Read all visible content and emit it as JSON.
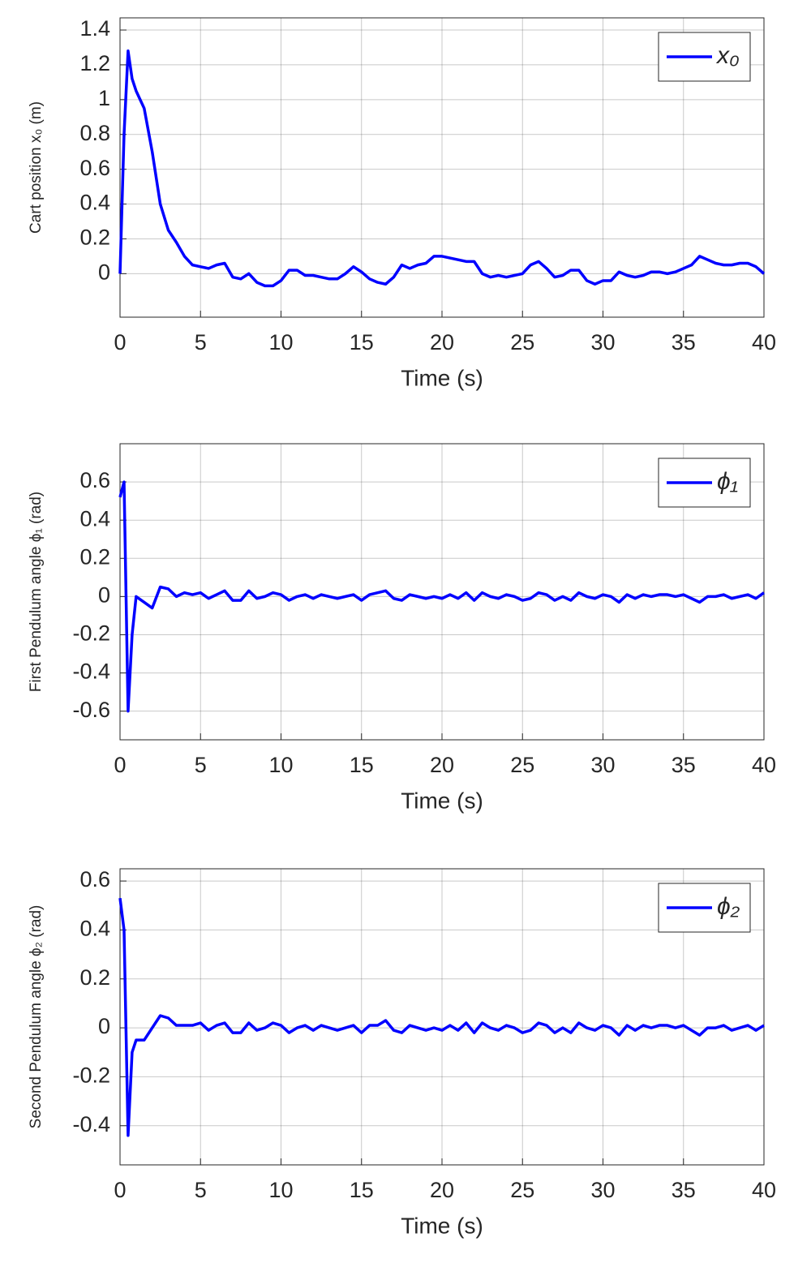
{
  "chart_data": [
    {
      "type": "line",
      "ylabel": "Cart position x₀ (m)",
      "xlabel": "Time (s)",
      "x": [
        0,
        0.25,
        0.5,
        0.75,
        1,
        1.5,
        2,
        2.5,
        3,
        3.5,
        4,
        4.5,
        5,
        5.5,
        6,
        6.5,
        7,
        7.5,
        8,
        8.5,
        9,
        9.5,
        10,
        10.5,
        11,
        11.5,
        12,
        12.5,
        13,
        13.5,
        14,
        14.5,
        15,
        15.5,
        16,
        16.5,
        17,
        17.5,
        18,
        18.5,
        19,
        19.5,
        20,
        20.5,
        21,
        21.5,
        22,
        22.5,
        23,
        23.5,
        24,
        24.5,
        25,
        25.5,
        26,
        26.5,
        27,
        27.5,
        28,
        28.5,
        29,
        29.5,
        30,
        30.5,
        31,
        31.5,
        32,
        32.5,
        33,
        33.5,
        34,
        34.5,
        35,
        35.5,
        36,
        36.5,
        37,
        37.5,
        38,
        38.5,
        39,
        39.5,
        40
      ],
      "series": [
        {
          "name": "x₀",
          "color": "#0000ff",
          "values": [
            0,
            0.8,
            1.28,
            1.12,
            1.05,
            0.95,
            0.7,
            0.4,
            0.25,
            0.18,
            0.1,
            0.05,
            0.04,
            0.03,
            0.05,
            0.06,
            -0.02,
            -0.03,
            0.0,
            -0.05,
            -0.07,
            -0.07,
            -0.04,
            0.02,
            0.02,
            -0.01,
            -0.01,
            -0.02,
            -0.03,
            -0.03,
            0.0,
            0.04,
            0.01,
            -0.03,
            -0.05,
            -0.06,
            -0.02,
            0.05,
            0.03,
            0.05,
            0.06,
            0.1,
            0.1,
            0.09,
            0.08,
            0.07,
            0.07,
            0.0,
            -0.02,
            -0.01,
            -0.02,
            -0.01,
            0.0,
            0.05,
            0.07,
            0.03,
            -0.02,
            -0.01,
            0.02,
            0.02,
            -0.04,
            -0.06,
            -0.04,
            -0.04,
            0.01,
            -0.01,
            -0.02,
            -0.01,
            0.01,
            0.01,
            0.0,
            0.01,
            0.03,
            0.05,
            0.1,
            0.08,
            0.06,
            0.05,
            0.05,
            0.06,
            0.06,
            0.04,
            0.0
          ]
        }
      ],
      "xlim": [
        0,
        40
      ],
      "xticks": [
        0,
        5,
        10,
        15,
        20,
        25,
        30,
        35,
        40
      ],
      "ylim": [
        -0.25,
        1.47
      ],
      "yticks": [
        0,
        0.2,
        0.4,
        0.6,
        0.8,
        1,
        1.2,
        1.4
      ],
      "grid": true,
      "legend": "upper right"
    },
    {
      "type": "line",
      "ylabel": "First Pendulum angle ϕ₁ (rad)",
      "xlabel": "Time (s)",
      "x": [
        0,
        0.25,
        0.5,
        0.75,
        1,
        1.5,
        2,
        2.5,
        3,
        3.5,
        4,
        4.5,
        5,
        5.5,
        6,
        6.5,
        7,
        7.5,
        8,
        8.5,
        9,
        9.5,
        10,
        10.5,
        11,
        11.5,
        12,
        12.5,
        13,
        13.5,
        14,
        14.5,
        15,
        15.5,
        16,
        16.5,
        17,
        17.5,
        18,
        18.5,
        19,
        19.5,
        20,
        20.5,
        21,
        21.5,
        22,
        22.5,
        23,
        23.5,
        24,
        24.5,
        25,
        25.5,
        26,
        26.5,
        27,
        27.5,
        28,
        28.5,
        29,
        29.5,
        30,
        30.5,
        31,
        31.5,
        32,
        32.5,
        33,
        33.5,
        34,
        34.5,
        35,
        35.5,
        36,
        36.5,
        37,
        37.5,
        38,
        38.5,
        39,
        39.5,
        40
      ],
      "series": [
        {
          "name": "ϕ₁",
          "color": "#0000ff",
          "values": [
            0.52,
            0.6,
            -0.6,
            -0.2,
            0.0,
            -0.03,
            -0.06,
            0.05,
            0.04,
            0.0,
            0.02,
            0.01,
            0.02,
            -0.01,
            0.01,
            0.03,
            -0.02,
            -0.02,
            0.03,
            -0.01,
            0.0,
            0.02,
            0.01,
            -0.02,
            0.0,
            0.01,
            -0.01,
            0.01,
            0.0,
            -0.01,
            0.0,
            0.01,
            -0.02,
            0.01,
            0.02,
            0.03,
            -0.01,
            -0.02,
            0.01,
            0.0,
            -0.01,
            0.0,
            -0.01,
            0.01,
            -0.01,
            0.02,
            -0.02,
            0.02,
            0.0,
            -0.01,
            0.01,
            0.0,
            -0.02,
            -0.01,
            0.02,
            0.01,
            -0.02,
            0.0,
            -0.02,
            0.02,
            0.0,
            -0.01,
            0.01,
            0.0,
            -0.03,
            0.01,
            -0.01,
            0.01,
            0.0,
            0.01,
            0.01,
            0.0,
            0.01,
            -0.01,
            -0.03,
            0.0,
            0.0,
            0.01,
            -0.01,
            0.0,
            0.01,
            -0.01,
            0.02
          ]
        }
      ],
      "xlim": [
        0,
        40
      ],
      "xticks": [
        0,
        5,
        10,
        15,
        20,
        25,
        30,
        35,
        40
      ],
      "ylim": [
        -0.75,
        0.8
      ],
      "yticks": [
        -0.6,
        -0.4,
        -0.2,
        0,
        0.2,
        0.4,
        0.6
      ],
      "grid": true,
      "legend": "upper right"
    },
    {
      "type": "line",
      "ylabel": "Second Pendulum angle ϕ₂ (rad)",
      "xlabel": "Time (s)",
      "x": [
        0,
        0.25,
        0.5,
        0.75,
        1,
        1.5,
        2,
        2.5,
        3,
        3.5,
        4,
        4.5,
        5,
        5.5,
        6,
        6.5,
        7,
        7.5,
        8,
        8.5,
        9,
        9.5,
        10,
        10.5,
        11,
        11.5,
        12,
        12.5,
        13,
        13.5,
        14,
        14.5,
        15,
        15.5,
        16,
        16.5,
        17,
        17.5,
        18,
        18.5,
        19,
        19.5,
        20,
        20.5,
        21,
        21.5,
        22,
        22.5,
        23,
        23.5,
        24,
        24.5,
        25,
        25.5,
        26,
        26.5,
        27,
        27.5,
        28,
        28.5,
        29,
        29.5,
        30,
        30.5,
        31,
        31.5,
        32,
        32.5,
        33,
        33.5,
        34,
        34.5,
        35,
        35.5,
        36,
        36.5,
        37,
        37.5,
        38,
        38.5,
        39,
        39.5,
        40
      ],
      "series": [
        {
          "name": "ϕ₂",
          "color": "#0000ff",
          "values": [
            0.53,
            0.4,
            -0.44,
            -0.1,
            -0.05,
            -0.05,
            0.0,
            0.05,
            0.04,
            0.01,
            0.01,
            0.01,
            0.02,
            -0.01,
            0.01,
            0.02,
            -0.02,
            -0.02,
            0.02,
            -0.01,
            0.0,
            0.02,
            0.01,
            -0.02,
            0.0,
            0.01,
            -0.01,
            0.01,
            0.0,
            -0.01,
            0.0,
            0.01,
            -0.02,
            0.01,
            0.01,
            0.03,
            -0.01,
            -0.02,
            0.01,
            0.0,
            -0.01,
            0.0,
            -0.01,
            0.01,
            -0.01,
            0.02,
            -0.02,
            0.02,
            0.0,
            -0.01,
            0.01,
            0.0,
            -0.02,
            -0.01,
            0.02,
            0.01,
            -0.02,
            0.0,
            -0.02,
            0.02,
            0.0,
            -0.01,
            0.01,
            0.0,
            -0.03,
            0.01,
            -0.01,
            0.01,
            0.0,
            0.01,
            0.01,
            0.0,
            0.01,
            -0.01,
            -0.03,
            0.0,
            0.0,
            0.01,
            -0.01,
            0.0,
            0.01,
            -0.01,
            0.01
          ]
        }
      ],
      "xlim": [
        0,
        40
      ],
      "xticks": [
        0,
        5,
        10,
        15,
        20,
        25,
        30,
        35,
        40
      ],
      "ylim": [
        -0.56,
        0.65
      ],
      "yticks": [
        -0.4,
        -0.2,
        0,
        0.2,
        0.4,
        0.6
      ],
      "grid": true,
      "legend": "upper right"
    }
  ]
}
